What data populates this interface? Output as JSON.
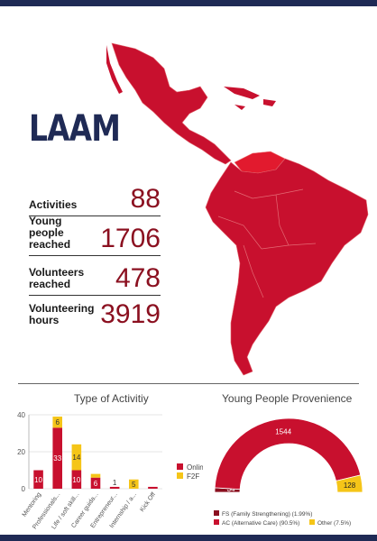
{
  "region": "LAAM",
  "stats": [
    {
      "label": "Activities",
      "value": "88"
    },
    {
      "label": "Young people reached",
      "value": "1706"
    },
    {
      "label": "Volunteers reached",
      "value": "478"
    },
    {
      "label": "Volunteering hours",
      "value": "3919"
    }
  ],
  "colors": {
    "navy": "#1f2a55",
    "red": "#c8102e",
    "dark_red": "#8b1020",
    "yellow": "#f5c518"
  },
  "chart_data": [
    {
      "type": "bar",
      "title": "Type of Activitiy",
      "categories": [
        "Mentoring",
        "Professionals...",
        "Life / soft skill...",
        "Career guida...",
        "Entrepreneur...",
        "Internship / a...",
        "Kick Off"
      ],
      "series": [
        {
          "name": "Online",
          "values": [
            10,
            33,
            10,
            6,
            1,
            0,
            1
          ]
        },
        {
          "name": "F2F",
          "values": [
            0,
            6,
            14,
            2,
            0,
            5,
            0
          ]
        }
      ],
      "data_labels": [
        {
          "category": "Mentoring",
          "series": "Online",
          "text": "10"
        },
        {
          "category": "Professionals...",
          "series": "Online",
          "text": "33"
        },
        {
          "category": "Professionals...",
          "series": "F2F",
          "text": "6"
        },
        {
          "category": "Life / soft skill...",
          "series": "Online",
          "text": "10"
        },
        {
          "category": "Life / soft skill...",
          "series": "F2F",
          "text": "14"
        },
        {
          "category": "Career guida...",
          "series": "Online",
          "text": "6"
        },
        {
          "category": "Entrepreneur...",
          "series": "Online",
          "text": "1"
        },
        {
          "category": "Internship / a...",
          "series": "F2F",
          "text": "5"
        }
      ],
      "yticks": [
        0,
        20,
        40
      ],
      "ylim": [
        0,
        40
      ],
      "stacked": true,
      "legend": "right"
    },
    {
      "type": "pie",
      "style": "half-donut",
      "title": "Young People Provenience",
      "slices": [
        {
          "name": "FS (Family Strengthening) (1.99%)",
          "value": 34,
          "label": "34"
        },
        {
          "name": "AC (Alternative Care) (90.5%)",
          "value": 1544,
          "label": "1544"
        },
        {
          "name": "Other (7.5%)",
          "value": 128,
          "label": "128"
        }
      ],
      "legend": "bottom"
    }
  ]
}
